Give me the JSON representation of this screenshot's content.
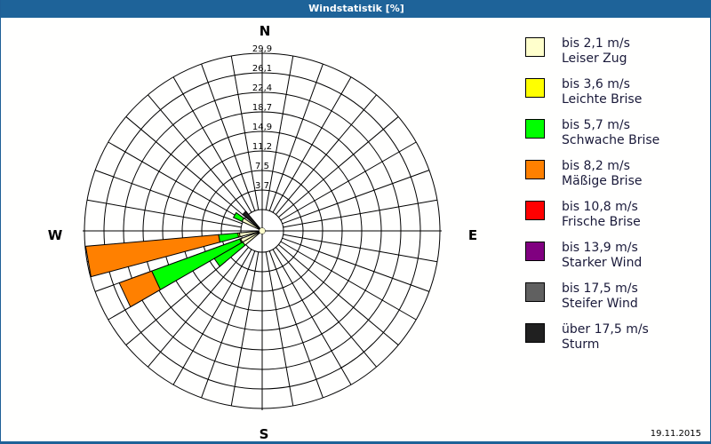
{
  "header": {
    "title": "Windstatistik [%]"
  },
  "compass": {
    "n": "N",
    "e": "E",
    "s": "S",
    "w": "W"
  },
  "footer": {
    "date": "19.11.2015"
  },
  "legend": [
    {
      "range": "bis 2,1 m/s",
      "name": "Leiser Zug",
      "color": "#ffffcc"
    },
    {
      "range": "bis 3,6 m/s",
      "name": "Leichte Brise",
      "color": "#ffff00"
    },
    {
      "range": "bis 5,7 m/s",
      "name": "Schwache Brise",
      "color": "#00ff00"
    },
    {
      "range": "bis 8,2 m/s",
      "name": "Mäßige Brise",
      "color": "#ff8000"
    },
    {
      "range": "bis 10,8 m/s",
      "name": "Frische Brise",
      "color": "#ff0000"
    },
    {
      "range": "bis 13,9 m/s",
      "name": "Starker Wind",
      "color": "#800080"
    },
    {
      "range": "bis 17,5 m/s",
      "name": "Steifer Wind",
      "color": "#606060"
    },
    {
      "range": "über 17,5 m/s",
      "name": "Sturm",
      "color": "#202020"
    }
  ],
  "chart_data": {
    "type": "wind-rose",
    "title": "Windstatistik [%]",
    "radial_ticks": [
      "3,7",
      "7,5",
      "11,2",
      "14,9",
      "18,7",
      "22,4",
      "26,1",
      "29,9"
    ],
    "radial_max": 29.9,
    "sector_width_deg": 10,
    "directions_deg_step": 10,
    "series_names": [
      "bis 2,1 m/s",
      "bis 3,6 m/s",
      "bis 5,7 m/s",
      "bis 8,2 m/s",
      "bis 10,8 m/s",
      "bis 13,9 m/s",
      "bis 17,5 m/s",
      "über 17,5 m/s"
    ],
    "sectors": [
      {
        "direction_deg": 260,
        "stacks": [
          {
            "class": "bis 2,1 m/s",
            "value": 0.3
          },
          {
            "class": "bis 3,6 m/s",
            "value": 0.3
          },
          {
            "class": "bis 5,7 m/s",
            "value": 3.7
          },
          {
            "class": "bis 8,2 m/s",
            "value": 25.5
          }
        ]
      },
      {
        "direction_deg": 245,
        "stacks": [
          {
            "class": "bis 2,1 m/s",
            "value": 0.3
          },
          {
            "class": "bis 3,6 m/s",
            "value": 0.2
          },
          {
            "class": "bis 5,7 m/s",
            "value": 17.9
          },
          {
            "class": "bis 8,2 m/s",
            "value": 6.6
          }
        ]
      },
      {
        "direction_deg": 235,
        "stacks": [
          {
            "class": "bis 2,1 m/s",
            "value": 0.2
          },
          {
            "class": "bis 5,7 m/s",
            "value": 6.3
          }
        ]
      },
      {
        "direction_deg": 300,
        "stacks": [
          {
            "class": "bis 2,1 m/s",
            "value": 0.2
          },
          {
            "class": "bis 5,7 m/s",
            "value": 1.8
          }
        ]
      },
      {
        "direction_deg": 315,
        "stacks": [
          {
            "class": "über 17,5 m/s",
            "value": 0.8
          }
        ]
      }
    ]
  }
}
